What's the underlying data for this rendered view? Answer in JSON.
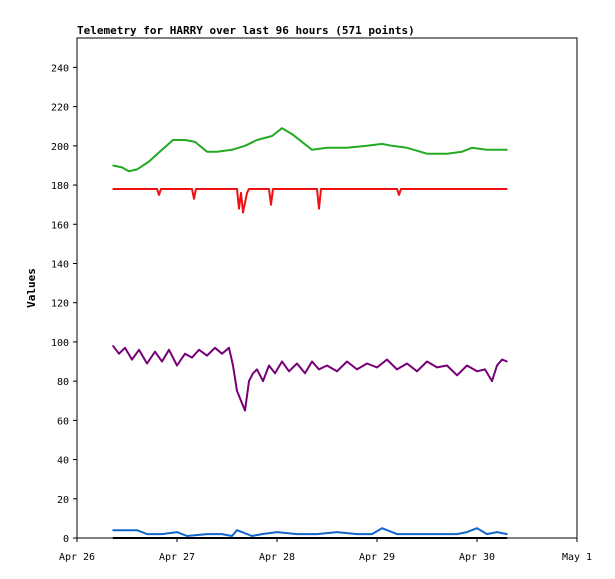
{
  "chart_data": {
    "type": "line",
    "title": "Telemetry for HARRY over last 96 hours (571 points)",
    "xlabel": "",
    "ylabel": "Values",
    "ylim": [
      0,
      255
    ],
    "xlim": [
      0,
      5
    ],
    "yticks": [
      0,
      20,
      40,
      60,
      80,
      100,
      120,
      140,
      160,
      180,
      200,
      220,
      240
    ],
    "xticks": [
      {
        "x": 0,
        "label": "Apr 26"
      },
      {
        "x": 1,
        "label": "Apr 27"
      },
      {
        "x": 2,
        "label": "Apr 28"
      },
      {
        "x": 3,
        "label": "Apr 29"
      },
      {
        "x": 4,
        "label": "Apr 30"
      },
      {
        "x": 5,
        "label": "May 1"
      }
    ],
    "grid": false,
    "x_units": "days since Apr 26 00:00",
    "series": [
      {
        "color": "#22aa22",
        "x": [
          0.36,
          0.45,
          0.52,
          0.6,
          0.72,
          0.85,
          0.96,
          1.08,
          1.18,
          1.3,
          1.4,
          1.55,
          1.68,
          1.8,
          1.95,
          2.05,
          2.15,
          2.25,
          2.35,
          2.5,
          2.7,
          2.9,
          3.05,
          3.15,
          3.3,
          3.5,
          3.7,
          3.85,
          3.95,
          4.1,
          4.3
        ],
        "y": [
          190,
          189,
          187,
          188,
          192,
          198,
          203,
          203,
          202,
          197,
          197,
          198,
          200,
          203,
          205,
          209,
          206,
          202,
          198,
          199,
          199,
          200,
          201,
          200,
          199,
          196,
          196,
          197,
          199,
          198,
          198
        ]
      },
      {
        "color": "#ee1111",
        "x": [
          0.36,
          0.5,
          0.7,
          0.8,
          0.82,
          0.84,
          1.0,
          1.15,
          1.17,
          1.19,
          1.4,
          1.6,
          1.62,
          1.64,
          1.66,
          1.68,
          1.7,
          1.72,
          1.8,
          1.92,
          1.94,
          1.96,
          2.1,
          2.4,
          2.42,
          2.44,
          2.7,
          3.2,
          3.22,
          3.24,
          3.5,
          4.3
        ],
        "y": [
          178,
          178,
          178,
          178,
          175,
          178,
          178,
          178,
          173,
          178,
          178,
          178,
          168,
          176,
          166,
          171,
          176,
          178,
          178,
          178,
          170,
          178,
          178,
          178,
          168,
          178,
          178,
          178,
          175,
          178,
          178,
          178
        ]
      },
      {
        "color": "#770077",
        "x": [
          0.36,
          0.42,
          0.48,
          0.55,
          0.62,
          0.7,
          0.78,
          0.85,
          0.92,
          1.0,
          1.08,
          1.15,
          1.22,
          1.3,
          1.38,
          1.45,
          1.52,
          1.56,
          1.6,
          1.64,
          1.68,
          1.72,
          1.76,
          1.8,
          1.86,
          1.92,
          1.98,
          2.05,
          2.12,
          2.2,
          2.28,
          2.35,
          2.42,
          2.5,
          2.6,
          2.7,
          2.8,
          2.9,
          3.0,
          3.1,
          3.2,
          3.3,
          3.4,
          3.5,
          3.6,
          3.7,
          3.8,
          3.9,
          4.0,
          4.08,
          4.15,
          4.2,
          4.25,
          4.3
        ],
        "y": [
          98,
          94,
          97,
          91,
          96,
          89,
          95,
          90,
          96,
          88,
          94,
          92,
          96,
          93,
          97,
          94,
          97,
          88,
          75,
          70,
          65,
          80,
          84,
          86,
          80,
          88,
          84,
          90,
          85,
          89,
          84,
          90,
          86,
          88,
          85,
          90,
          86,
          89,
          87,
          91,
          86,
          89,
          85,
          90,
          87,
          88,
          83,
          88,
          85,
          86,
          80,
          88,
          91,
          90
        ]
      },
      {
        "color": "#1166cc",
        "x": [
          0.36,
          0.5,
          0.6,
          0.7,
          0.85,
          1.0,
          1.1,
          1.3,
          1.45,
          1.55,
          1.6,
          1.65,
          1.75,
          1.85,
          2.0,
          2.2,
          2.4,
          2.6,
          2.8,
          2.95,
          3.05,
          3.2,
          3.4,
          3.6,
          3.8,
          3.9,
          4.0,
          4.1,
          4.2,
          4.3
        ],
        "y": [
          4,
          4,
          4,
          2,
          2,
          3,
          1,
          2,
          2,
          1,
          4,
          3,
          1,
          2,
          3,
          2,
          2,
          3,
          2,
          2,
          5,
          2,
          2,
          2,
          2,
          3,
          5,
          2,
          3,
          2
        ]
      },
      {
        "color": "#000000",
        "x": [
          0.36,
          4.3
        ],
        "y": [
          0,
          0
        ]
      }
    ]
  }
}
